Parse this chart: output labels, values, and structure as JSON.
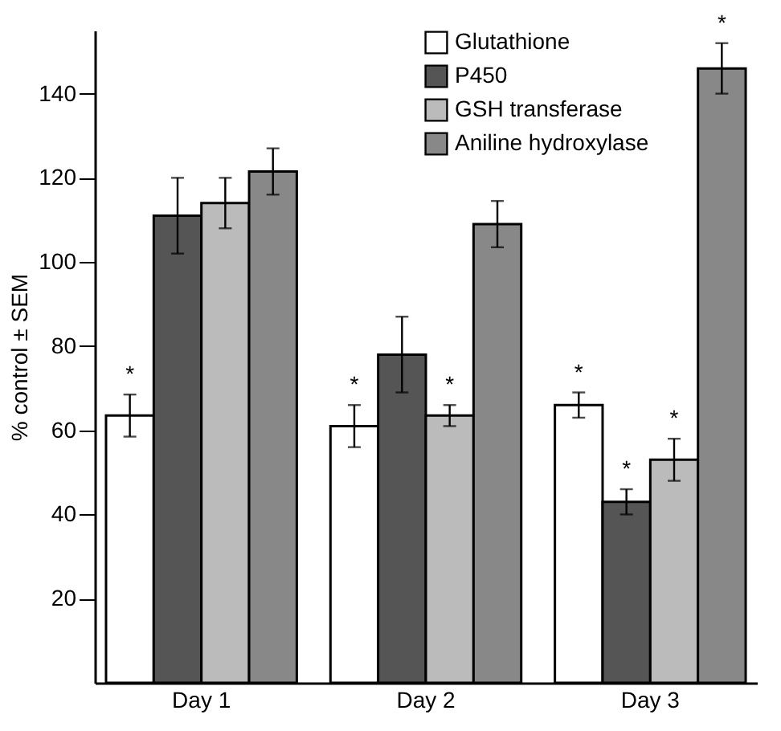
{
  "chart_data": {
    "type": "bar",
    "ylabel": "% control ± SEM",
    "categories": [
      "Day 1",
      "Day 2",
      "Day 3"
    ],
    "ylim": [
      0,
      155
    ],
    "yticks": [
      20,
      40,
      60,
      80,
      100,
      120,
      140
    ],
    "grid": false,
    "legend": "top right",
    "series": [
      {
        "name": "Glutathione",
        "color": "#ffffff",
        "values": [
          63.5,
          61,
          66
        ],
        "errors": [
          5,
          5,
          3
        ],
        "value_labels": [
          "*",
          "*",
          "*"
        ]
      },
      {
        "name": "P450",
        "color": "#555555",
        "values": [
          111,
          78,
          43
        ],
        "errors": [
          9,
          9,
          3
        ],
        "value_labels": [
          null,
          null,
          "*"
        ]
      },
      {
        "name": "GSH transferase",
        "color": "#bbbbbb",
        "values": [
          114,
          63.5,
          53
        ],
        "errors": [
          6,
          2.5,
          5
        ],
        "value_labels": [
          null,
          "*",
          "*"
        ]
      },
      {
        "name": "Aniline hydroxylase",
        "color": "#888888",
        "values": [
          121.5,
          109,
          146
        ],
        "errors": [
          5.5,
          5.5,
          6
        ],
        "value_labels": [
          null,
          null,
          "*"
        ]
      }
    ]
  }
}
